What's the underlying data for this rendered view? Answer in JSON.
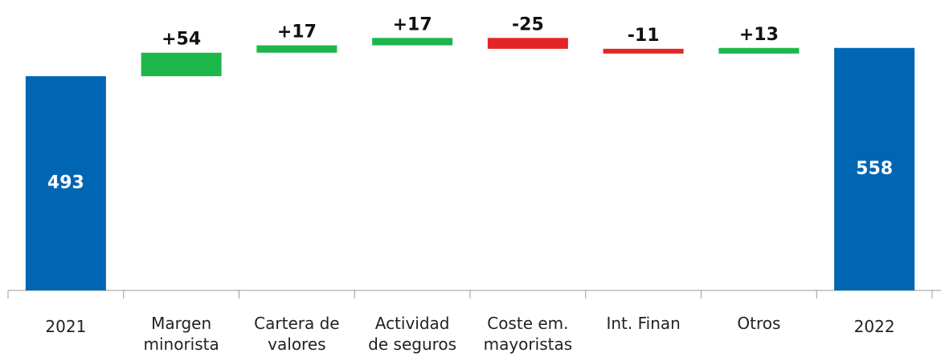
{
  "chart_data": {
    "type": "waterfall",
    "categories": [
      "2021",
      "Margen minorista",
      "Cartera de valores",
      "Actividad de seguros",
      "Coste em. mayoristas",
      "Int. Finan",
      "Otros",
      "2022"
    ],
    "measures": [
      "absolute",
      "relative",
      "relative",
      "relative",
      "relative",
      "relative",
      "relative",
      "absolute"
    ],
    "values": [
      493,
      54,
      17,
      17,
      -25,
      -11,
      13,
      558
    ],
    "value_labels": [
      "493",
      "+54",
      "+17",
      "+17",
      "-25",
      "-11",
      "+13",
      "558"
    ],
    "colors": {
      "absolute": "#0066b3",
      "increase": "#1db64a",
      "decrease": "#e32525"
    },
    "ylim": [
      0,
      600
    ]
  }
}
